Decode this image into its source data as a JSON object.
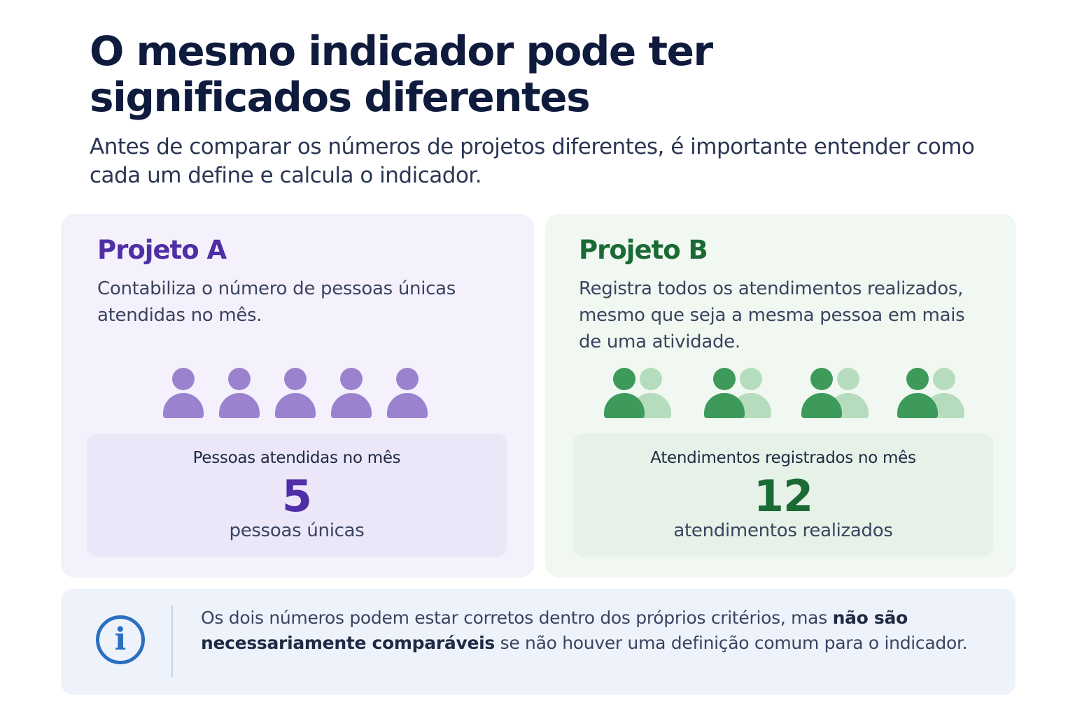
{
  "header": {
    "title": "O mesmo indicador pode ter significados diferentes",
    "subtitle": "Antes de comparar os números de projetos diferentes, é importante entender como cada um define e calcula o indicador."
  },
  "project_a": {
    "title": "Projeto A",
    "description": "Contabiliza o número de pessoas únicas atendidas no mês.",
    "icon": "person-icon",
    "icon_count": 5,
    "stat_label": "Pessoas atendidas no mês",
    "stat_value": "5",
    "stat_unit": "pessoas únicas",
    "color": "#4f2ea6"
  },
  "project_b": {
    "title": "Projeto B",
    "description": "Registra todos os atendimentos realizados, mesmo que seja a mesma pessoa em mais de uma atividade.",
    "icon": "people-pair-icon",
    "icon_count": 4,
    "stat_label": "Atendimentos registrados no mês",
    "stat_value": "12",
    "stat_unit": "atendimentos realizados",
    "color": "#1b6a36"
  },
  "note": {
    "icon": "info-icon",
    "text_before": "Os dois números podem estar corretos dentro dos próprios critérios, mas ",
    "text_bold": "não são necessariamente comparáveis",
    "text_after": " se não houver uma definição comum para o indicador."
  }
}
